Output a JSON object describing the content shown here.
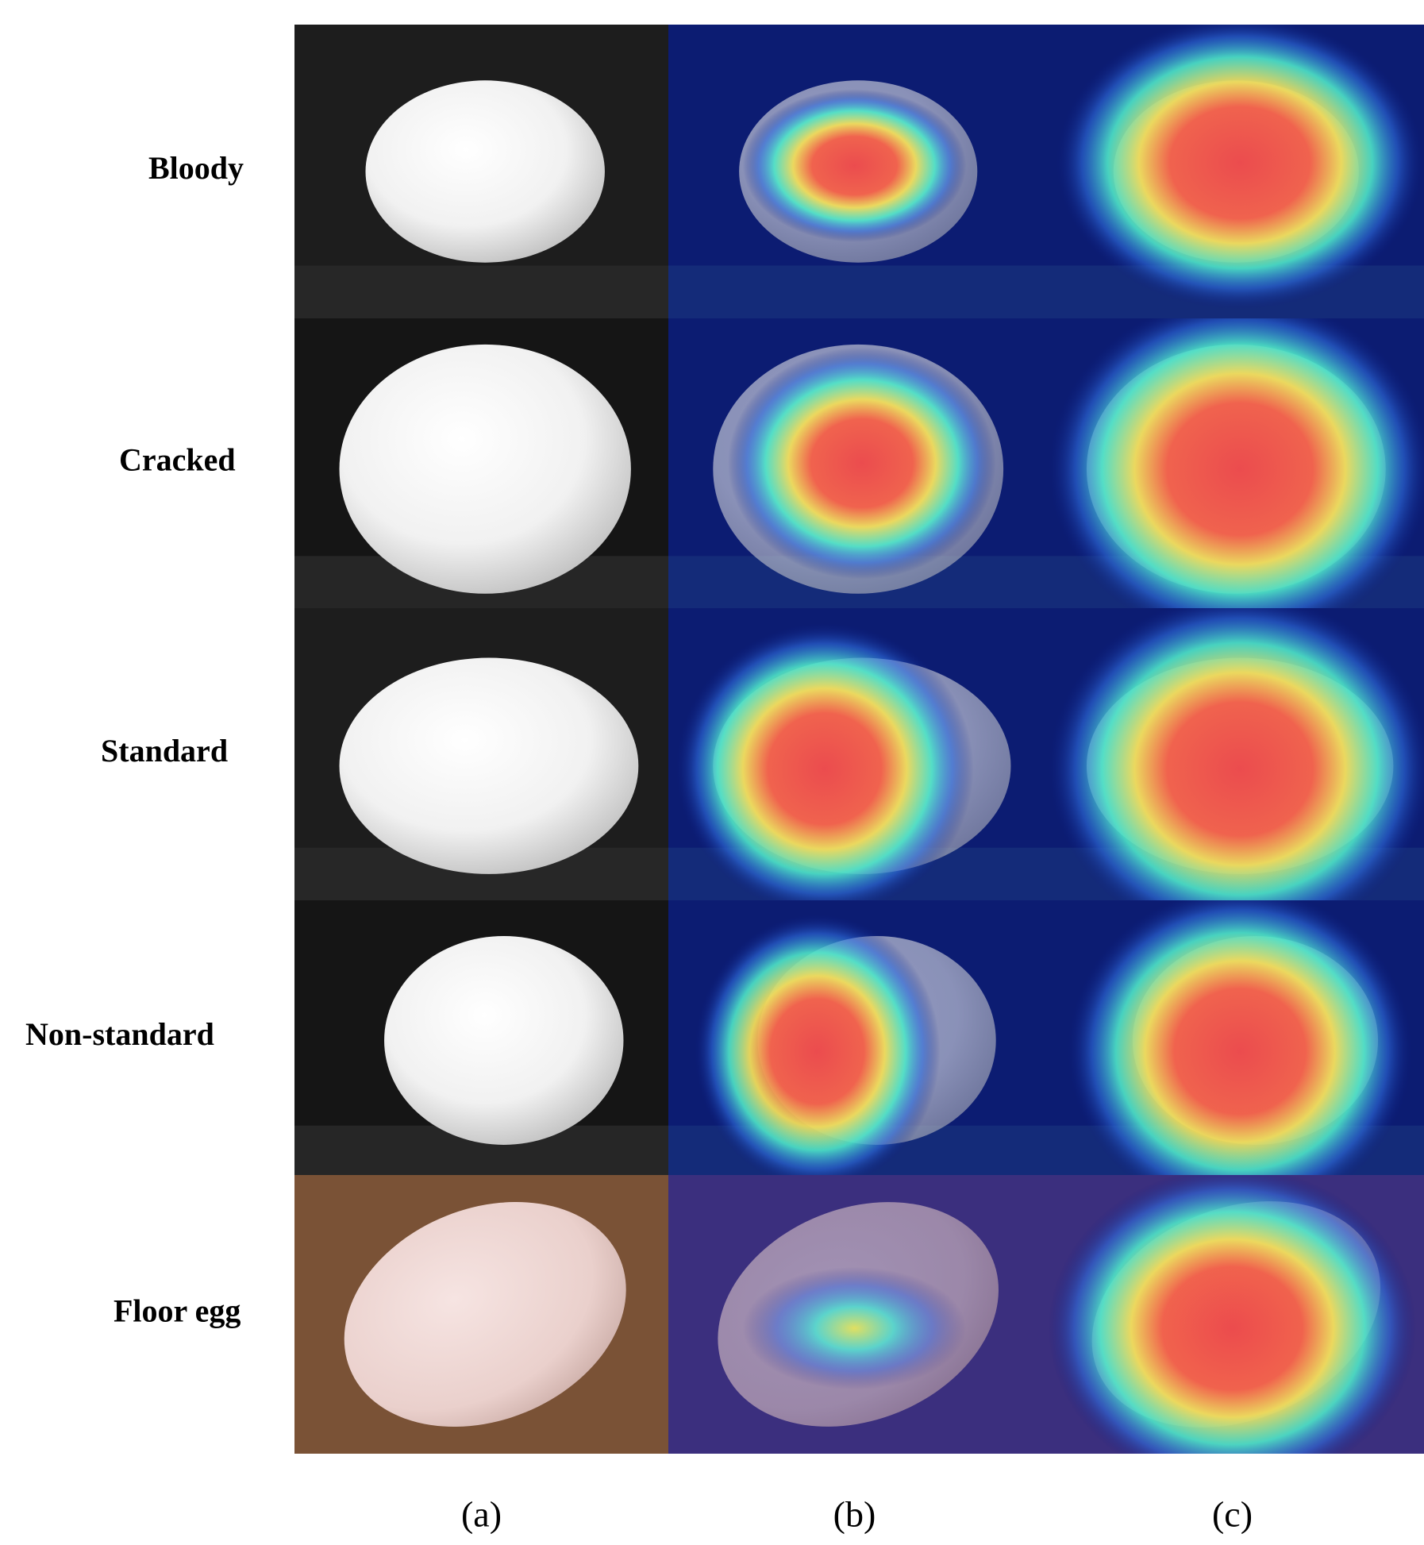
{
  "row_labels": [
    "Bloody",
    "Cracked",
    "Standard",
    "Non-standard",
    "Floor egg"
  ],
  "column_labels": [
    "(a)",
    "(b)",
    "(c)"
  ]
}
